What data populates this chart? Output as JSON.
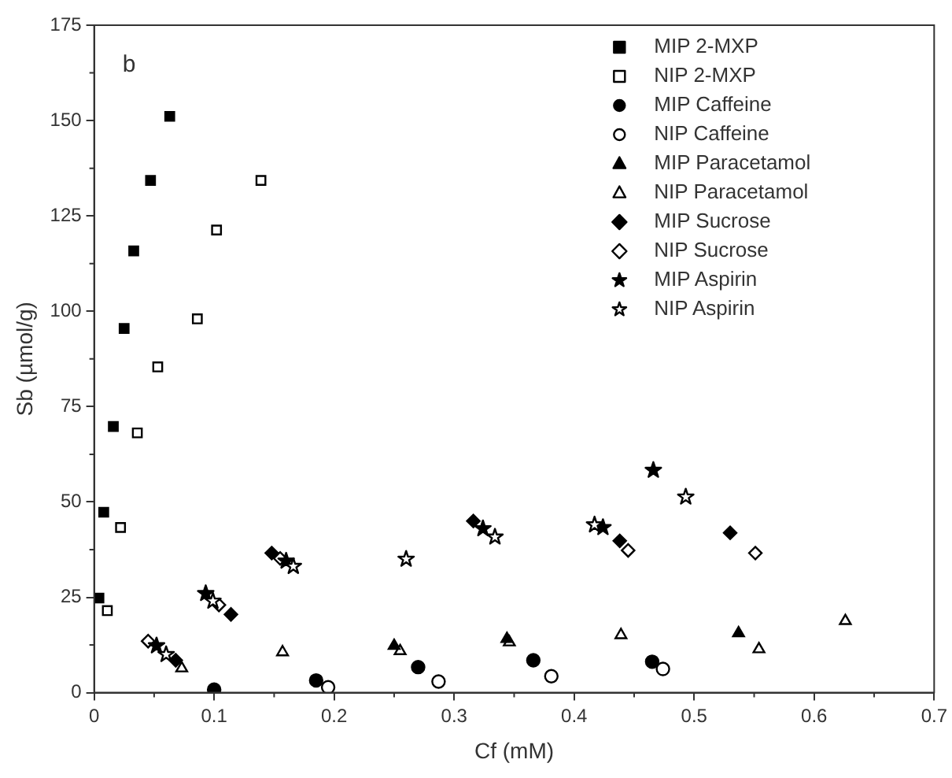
{
  "chart_data": {
    "type": "scatter",
    "xlabel": "Cf (mM)",
    "ylabel": "Sb (µmol/g)",
    "xlim": [
      0,
      0.7
    ],
    "ylim": [
      0,
      175
    ],
    "xticks": [
      0,
      0.1,
      0.2,
      0.3,
      0.4,
      0.5,
      0.6,
      0.7
    ],
    "yticks": [
      0,
      25,
      50,
      75,
      100,
      125,
      150,
      175
    ],
    "grid": false,
    "legend": "top right",
    "annotations": [
      "b"
    ],
    "series": [
      {
        "name": "MIP 2-MXP",
        "marker": "square",
        "color": "#000000",
        "x": [
          0.004,
          0.008,
          0.016,
          0.025,
          0.033,
          0.047,
          0.063
        ],
        "values": [
          24.8,
          47.3,
          69.8,
          95.5,
          115.8,
          134.3,
          151.1
        ]
      },
      {
        "name": "NIP 2-MXP",
        "marker": "square",
        "color": "#ffffff",
        "x": [
          0.011,
          0.022,
          0.036,
          0.053,
          0.086,
          0.102,
          0.139
        ],
        "values": [
          21.5,
          43.3,
          68.1,
          85.4,
          98,
          121.3,
          134.3
        ]
      },
      {
        "name": "MIP Caffeine",
        "marker": "circle",
        "color": "#000000",
        "x": [
          0.1,
          0.185,
          0.27,
          0.366,
          0.465
        ],
        "values": [
          0.8,
          3.2,
          6.7,
          8.5,
          8.1
        ]
      },
      {
        "name": "NIP Caffeine",
        "marker": "circle",
        "color": "#ffffff",
        "x": [
          0.195,
          0.287,
          0.381,
          0.474
        ],
        "values": [
          1.4,
          2.9,
          4.3,
          6.2
        ]
      },
      {
        "name": "MIP Paracetamol",
        "marker": "triangle",
        "color": "#000000",
        "x": [
          0.25,
          0.344,
          0.537
        ],
        "values": [
          12.3,
          14.1,
          15.6
        ]
      },
      {
        "name": "NIP Paracetamol",
        "marker": "triangle",
        "color": "#ffffff",
        "x": [
          0.073,
          0.157,
          0.255,
          0.346,
          0.439,
          0.554,
          0.626
        ],
        "values": [
          6.4,
          10.6,
          10.9,
          13.2,
          15.1,
          11.4,
          18.8
        ]
      },
      {
        "name": "MIP Sucrose",
        "marker": "diamond",
        "color": "#000000",
        "x": [
          0.068,
          0.114,
          0.148,
          0.258,
          0.316,
          0.438,
          0.53
        ],
        "values": [
          8.5,
          20.5,
          36.6,
          null,
          45,
          39.8,
          41.9
        ]
      },
      {
        "name": "NIP Sucrose",
        "marker": "diamond",
        "color": "#ffffff",
        "x": [
          0.045,
          0.104,
          0.155,
          0.261,
          0.328,
          0.445,
          0.551
        ],
        "values": [
          13.5,
          23,
          35.2,
          null,
          null,
          37.3,
          36.6
        ]
      },
      {
        "name": "MIP Aspirin",
        "marker": "star",
        "color": "#000000",
        "x": [
          0.052,
          0.093,
          0.16,
          0.257,
          0.324,
          0.424,
          0.466
        ],
        "values": [
          12.3,
          26,
          34.5,
          null,
          43,
          43.3,
          58.3
        ]
      },
      {
        "name": "NIP Aspirin",
        "marker": "star",
        "color": "#ffffff",
        "x": [
          0.06,
          0.099,
          0.166,
          0.26,
          0.334,
          0.417,
          0.493
        ],
        "values": [
          10,
          24,
          33.1,
          35,
          40.8,
          44,
          51.3
        ]
      }
    ]
  }
}
